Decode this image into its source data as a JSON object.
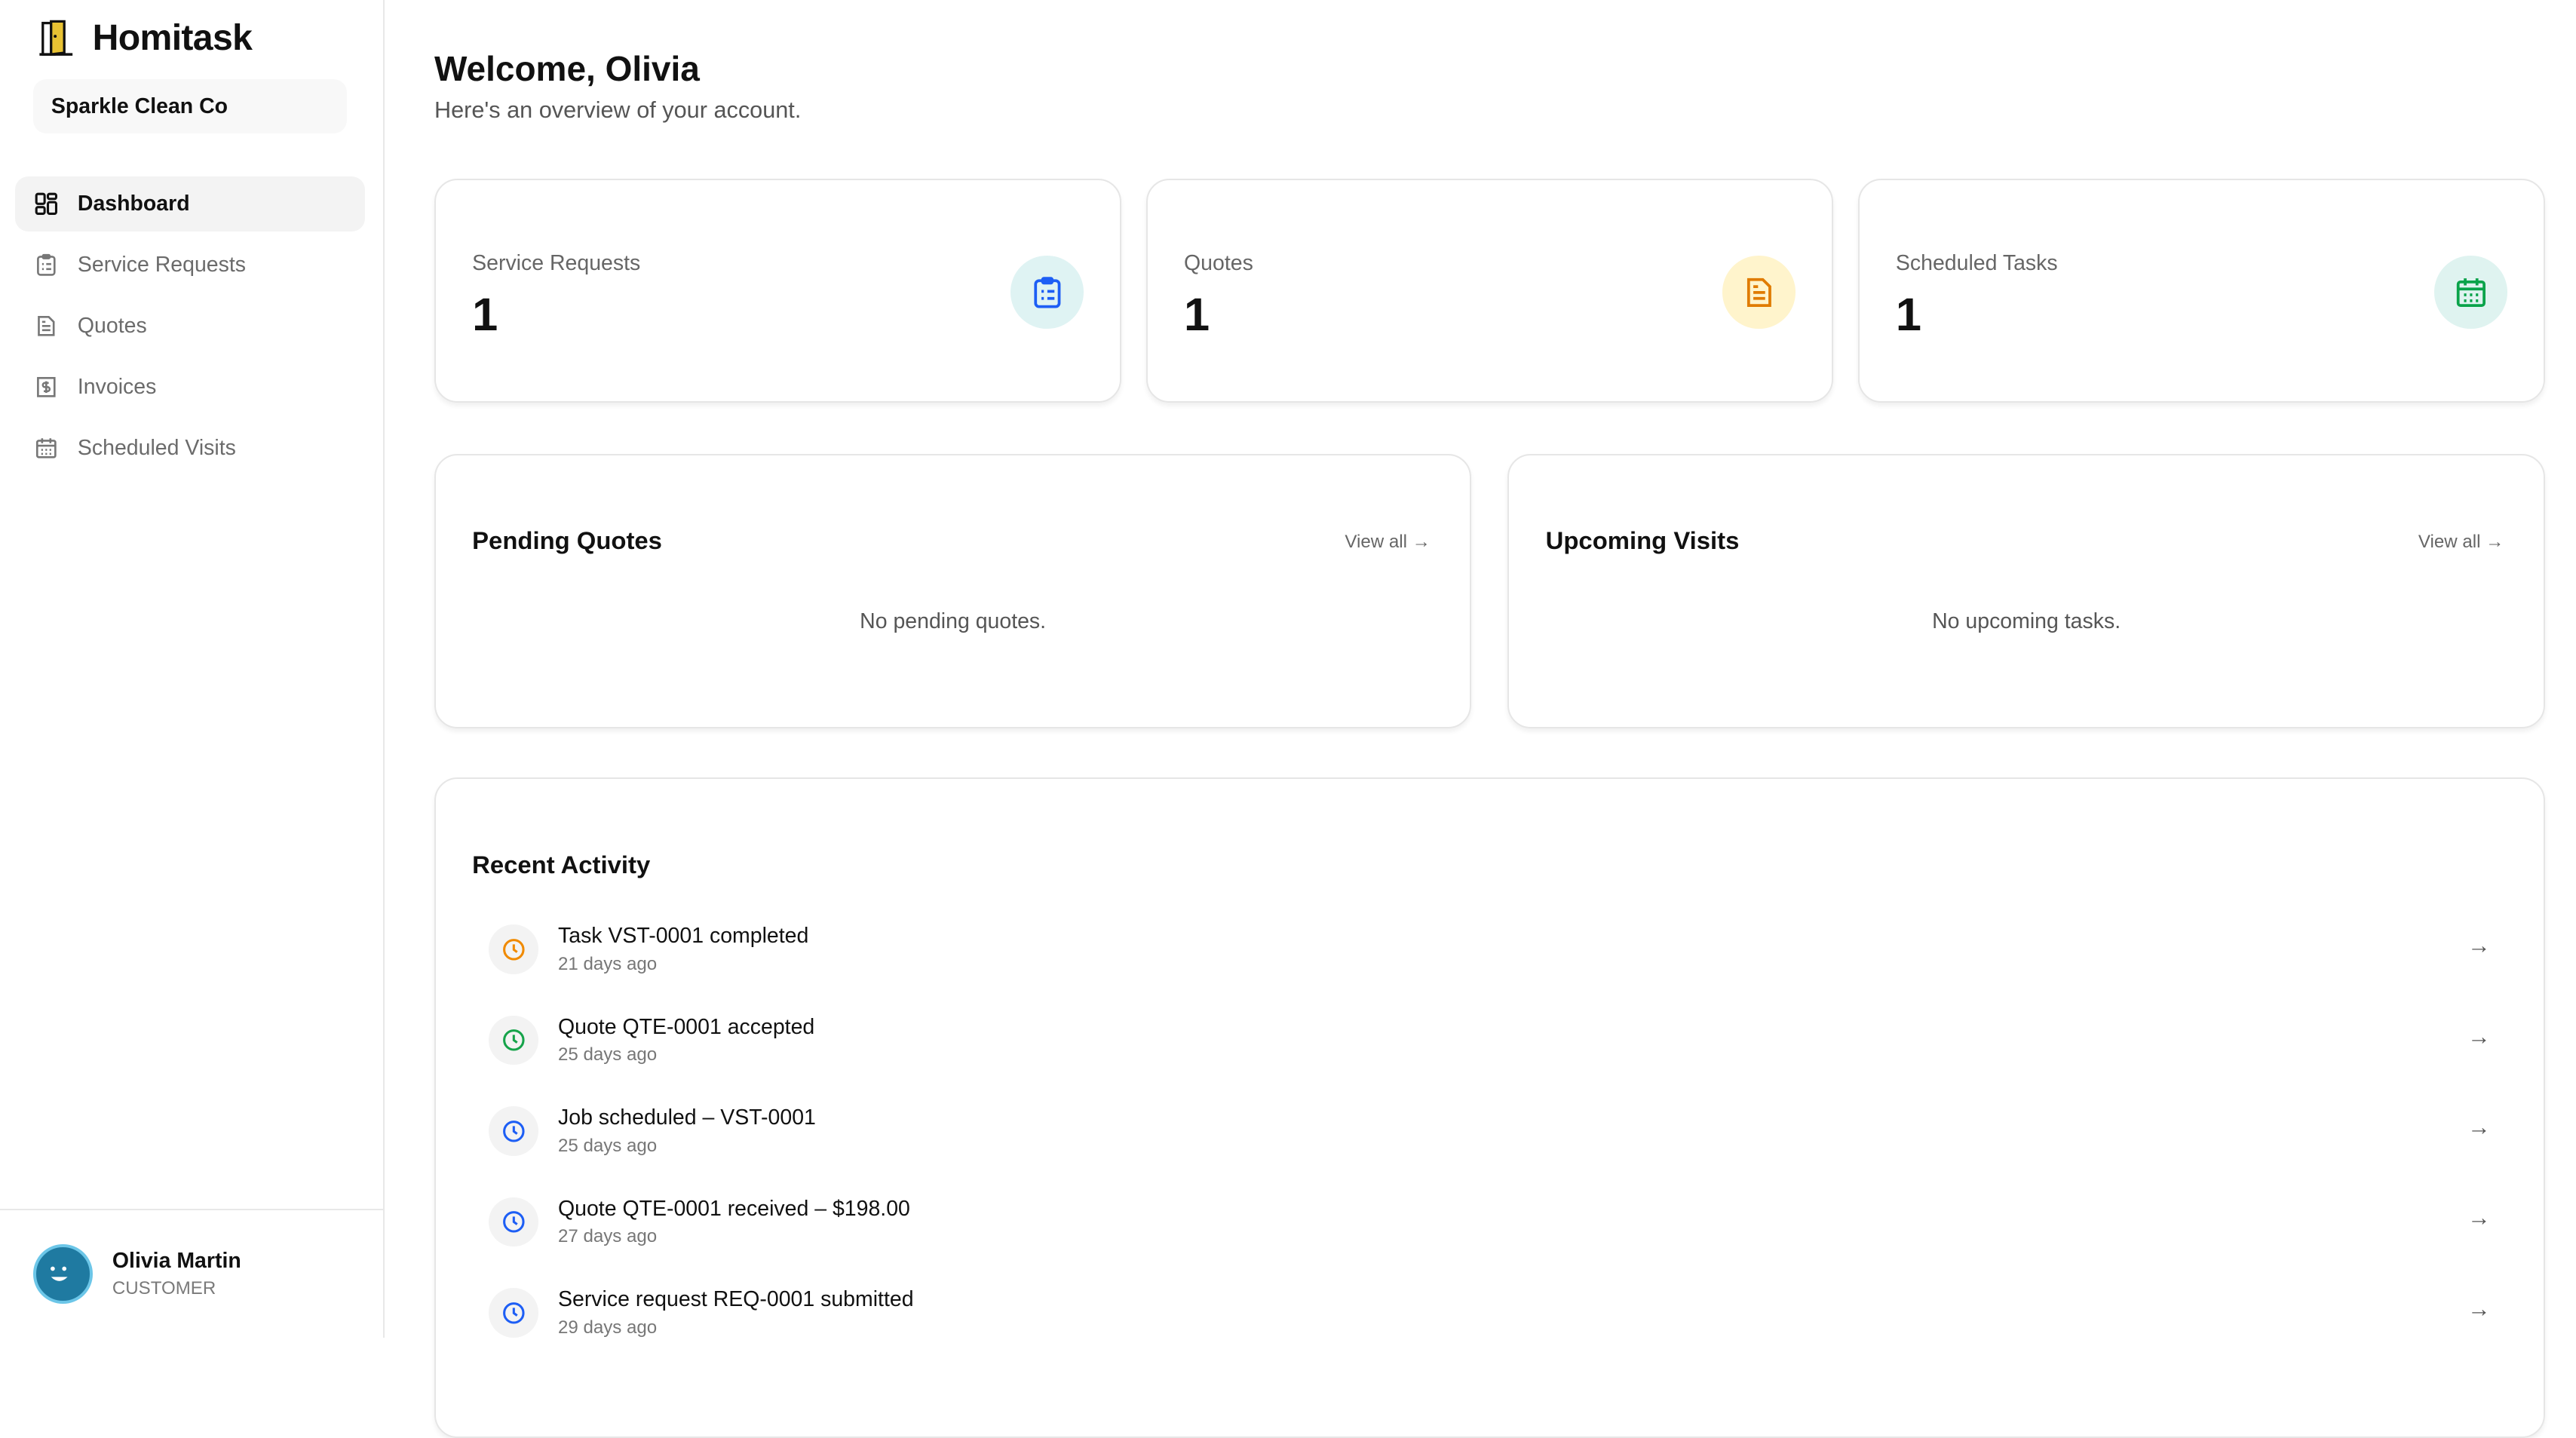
{
  "app": {
    "name": "Homitask",
    "organization": "Sparkle Clean Co"
  },
  "sidebar": {
    "items": [
      {
        "label": "Dashboard",
        "icon": "dashboard-grid-icon",
        "active": true
      },
      {
        "label": "Service Requests",
        "icon": "clipboard-list-icon"
      },
      {
        "label": "Quotes",
        "icon": "file-text-icon"
      },
      {
        "label": "Invoices",
        "icon": "receipt-dollar-icon"
      },
      {
        "label": "Scheduled Visits",
        "icon": "calendar-icon"
      }
    ]
  },
  "user": {
    "name": "Olivia Martin",
    "role": "CUSTOMER"
  },
  "header": {
    "title": "Welcome, Olivia",
    "subtitle": "Here's an overview of your account."
  },
  "stats": [
    {
      "label": "Service Requests",
      "value": "1",
      "icon": "clipboard-list-icon",
      "color": "#1d5ef5",
      "bg": "#dff3f3"
    },
    {
      "label": "Quotes",
      "value": "1",
      "icon": "file-text-icon",
      "color": "#e07b00",
      "bg": "#fff4cc"
    },
    {
      "label": "Scheduled Tasks",
      "value": "1",
      "icon": "calendar-icon",
      "color": "#0aa34a",
      "bg": "#dff3f0"
    }
  ],
  "pending": {
    "title": "Pending Quotes",
    "view_all": "View all →",
    "empty": "No pending quotes."
  },
  "upcoming": {
    "title": "Upcoming Visits",
    "view_all": "View all →",
    "empty": "No upcoming tasks."
  },
  "activity": {
    "title": "Recent Activity",
    "items": [
      {
        "title": "Task VST-0001 completed",
        "time": "21 days ago",
        "color": "#f08a00"
      },
      {
        "title": "Quote QTE-0001 accepted",
        "time": "25 days ago",
        "color": "#16a34a"
      },
      {
        "title": "Job scheduled – VST-0001",
        "time": "25 days ago",
        "color": "#1d5ef5"
      },
      {
        "title": "Quote QTE-0001 received – $198.00",
        "time": "27 days ago",
        "color": "#1d5ef5"
      },
      {
        "title": "Service request REQ-0001 submitted",
        "time": "29 days ago",
        "color": "#1d5ef5"
      }
    ]
  }
}
